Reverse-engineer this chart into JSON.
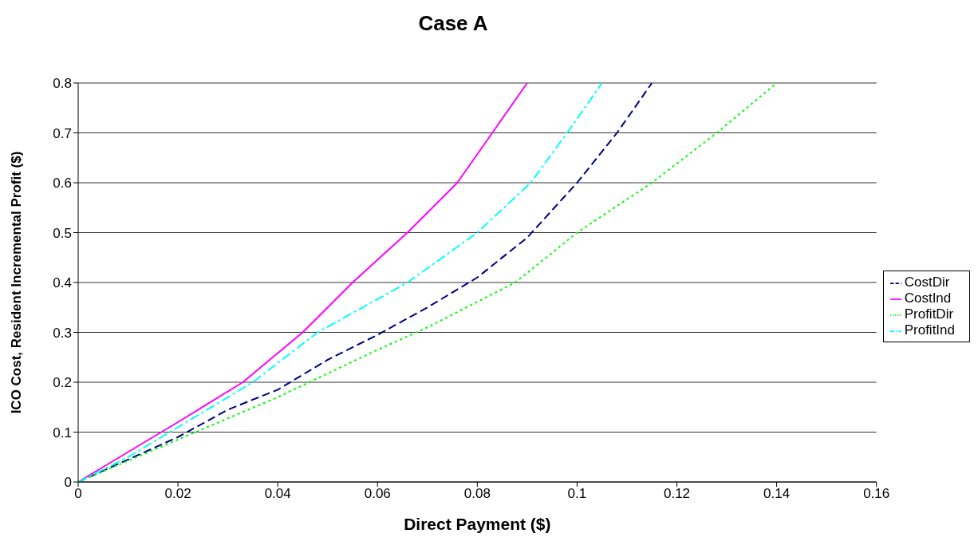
{
  "chart_data": {
    "type": "line",
    "title": "Case A",
    "xlabel": "Direct Payment ($)",
    "ylabel": "ICO Cost, Resident Incremental Profit ($)",
    "xlim": [
      0,
      0.16
    ],
    "xticks": [
      0,
      0.02,
      0.04,
      0.06,
      0.08,
      0.1,
      0.12,
      0.14,
      0.16
    ],
    "ylim": [
      0,
      0.8
    ],
    "yticks": [
      0,
      0.1,
      0.2,
      0.3,
      0.4,
      0.5,
      0.6,
      0.7,
      0.8
    ],
    "grid": "y",
    "legend": "right",
    "marker": "none",
    "series": [
      {
        "name": "CostDir",
        "color": "#000080",
        "line_style": "dashed",
        "x": [
          0,
          0.01,
          0.02,
          0.03,
          0.04,
          0.05,
          0.06,
          0.07,
          0.08,
          0.09,
          0.1,
          0.108,
          0.115
        ],
        "values": [
          0,
          0.045,
          0.09,
          0.145,
          0.185,
          0.245,
          0.295,
          0.35,
          0.41,
          0.49,
          0.6,
          0.7,
          0.8
        ]
      },
      {
        "name": "CostInd",
        "color": "#ff00ff",
        "line_style": "solid",
        "x": [
          0,
          0.005,
          0.01,
          0.02,
          0.033,
          0.045,
          0.055,
          0.066,
          0.076,
          0.083,
          0.09
        ],
        "values": [
          0,
          0.03,
          0.06,
          0.12,
          0.2,
          0.3,
          0.4,
          0.5,
          0.6,
          0.7,
          0.8
        ]
      },
      {
        "name": "ProfitDir",
        "color": "#00ff00",
        "line_style": "dotted",
        "x": [
          0,
          0.02,
          0.04,
          0.06,
          0.07,
          0.0876,
          0.1,
          0.115,
          0.128,
          0.14
        ],
        "values": [
          0,
          0.085,
          0.17,
          0.265,
          0.31,
          0.4,
          0.5,
          0.6,
          0.7,
          0.8
        ]
      },
      {
        "name": "ProfitInd",
        "color": "#00ffff",
        "line_style": "dashdot",
        "x": [
          0,
          0.01,
          0.02,
          0.035,
          0.048,
          0.066,
          0.08,
          0.0907,
          0.098,
          0.105
        ],
        "values": [
          0,
          0.05,
          0.11,
          0.2,
          0.3,
          0.4,
          0.5,
          0.6,
          0.7,
          0.8
        ]
      }
    ]
  }
}
